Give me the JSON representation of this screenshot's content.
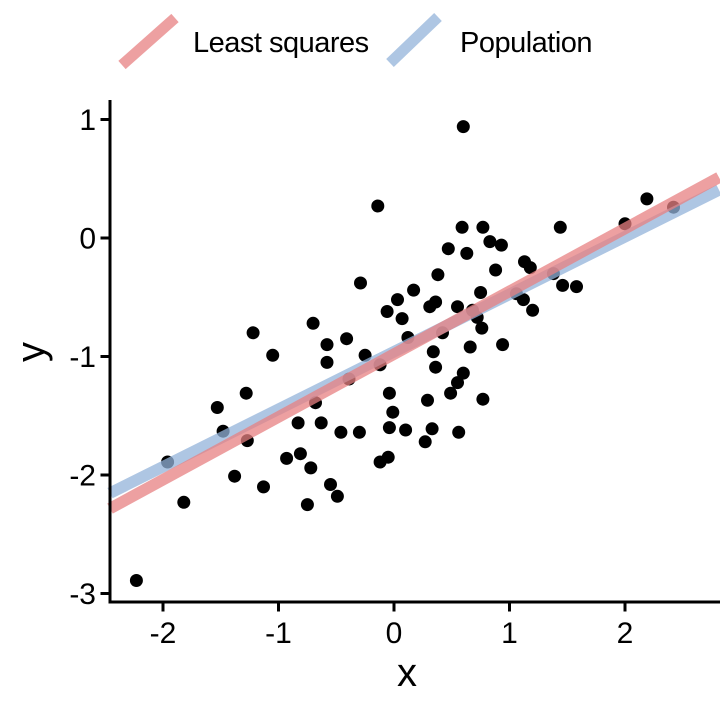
{
  "figure": {
    "background": "#ffffff",
    "text_color": "#000000"
  },
  "chart_data": {
    "type": "scatter",
    "title": "",
    "xlabel": "x",
    "ylabel": "y",
    "xlim": [
      -2.46,
      2.82
    ],
    "ylim": [
      -3.08,
      1.16
    ],
    "xticks": [
      "-2",
      "-1",
      "0",
      "1",
      "2"
    ],
    "xtick_values": [
      -2,
      -1,
      0,
      1,
      2
    ],
    "yticks": [
      "1",
      "0",
      "-1",
      "-2",
      "-3"
    ],
    "ytick_values": [
      1,
      0,
      -1,
      -2,
      -3
    ],
    "grid": false,
    "legend_position": "top",
    "point_color": "#000000",
    "point_radius_px": 6.5,
    "lines": [
      {
        "label": "Least squares",
        "slope": 0.53,
        "intercept": -0.98,
        "color": "rgba(231,128,130,0.75)",
        "color_on_white": "#ED9FA1"
      },
      {
        "label": "Population",
        "slope": 0.485,
        "intercept": -0.96,
        "color": "rgba(147,179,218,0.75)",
        "color_on_white": "#AEC6E3"
      }
    ],
    "points": [
      [
        -0.14,
        0.27
      ],
      [
        -0.29,
        -0.38
      ],
      [
        0.03,
        -0.52
      ],
      [
        -0.06,
        -0.62
      ],
      [
        0.07,
        -0.68
      ],
      [
        -0.7,
        -0.72
      ],
      [
        -1.22,
        -0.8
      ],
      [
        -0.58,
        -0.9
      ],
      [
        -0.41,
        -0.85
      ],
      [
        0.12,
        -0.84
      ],
      [
        0.6,
        0.94
      ],
      [
        2.19,
        0.33
      ],
      [
        2.42,
        0.26
      ],
      [
        2.0,
        0.12
      ],
      [
        1.44,
        0.09
      ],
      [
        0.59,
        0.09
      ],
      [
        0.77,
        0.09
      ],
      [
        0.83,
        -0.03
      ],
      [
        0.93,
        -0.06
      ],
      [
        0.47,
        -0.09
      ],
      [
        0.63,
        -0.13
      ],
      [
        1.13,
        -0.2
      ],
      [
        1.18,
        -0.25
      ],
      [
        1.38,
        -0.3
      ],
      [
        0.88,
        -0.27
      ],
      [
        0.38,
        -0.31
      ],
      [
        1.46,
        -0.4
      ],
      [
        1.58,
        -0.41
      ],
      [
        0.17,
        -0.44
      ],
      [
        1.06,
        -0.47
      ],
      [
        0.75,
        -0.46
      ],
      [
        1.12,
        -0.52
      ],
      [
        0.36,
        -0.54
      ],
      [
        0.31,
        -0.58
      ],
      [
        0.55,
        -0.58
      ],
      [
        0.68,
        -0.61
      ],
      [
        1.2,
        -0.61
      ],
      [
        0.72,
        -0.67
      ],
      [
        0.42,
        -0.8
      ],
      [
        0.76,
        -0.76
      ],
      [
        0.66,
        -0.92
      ],
      [
        0.94,
        -0.9
      ],
      [
        -1.05,
        -0.99
      ],
      [
        -0.58,
        -1.05
      ],
      [
        -0.25,
        -0.99
      ],
      [
        -0.39,
        -1.19
      ],
      [
        -0.12,
        -1.07
      ],
      [
        -1.28,
        -1.31
      ],
      [
        -1.53,
        -1.43
      ],
      [
        -0.68,
        -1.39
      ],
      [
        -0.83,
        -1.56
      ],
      [
        -0.63,
        -1.56
      ],
      [
        -1.48,
        -1.63
      ],
      [
        -1.27,
        -1.71
      ],
      [
        -0.46,
        -1.64
      ],
      [
        -0.3,
        -1.64
      ],
      [
        -0.04,
        -1.31
      ],
      [
        -0.01,
        -1.47
      ],
      [
        -0.04,
        -1.6
      ],
      [
        0.1,
        -1.62
      ],
      [
        -0.93,
        -1.86
      ],
      [
        -0.81,
        -1.82
      ],
      [
        -0.72,
        -1.94
      ],
      [
        -0.12,
        -1.89
      ],
      [
        -0.05,
        -1.85
      ],
      [
        -1.96,
        -1.89
      ],
      [
        -1.38,
        -2.01
      ],
      [
        -1.13,
        -2.1
      ],
      [
        -0.55,
        -2.08
      ],
      [
        -0.49,
        -2.18
      ],
      [
        -1.82,
        -2.23
      ],
      [
        -0.75,
        -2.25
      ],
      [
        -2.23,
        -2.89
      ],
      [
        0.36,
        -1.09
      ],
      [
        0.6,
        -1.14
      ],
      [
        0.55,
        -1.22
      ],
      [
        0.49,
        -1.31
      ],
      [
        0.29,
        -1.37
      ],
      [
        0.77,
        -1.36
      ],
      [
        0.33,
        -1.61
      ],
      [
        0.27,
        -1.72
      ],
      [
        0.56,
        -1.64
      ],
      [
        0.34,
        -0.96
      ]
    ]
  }
}
